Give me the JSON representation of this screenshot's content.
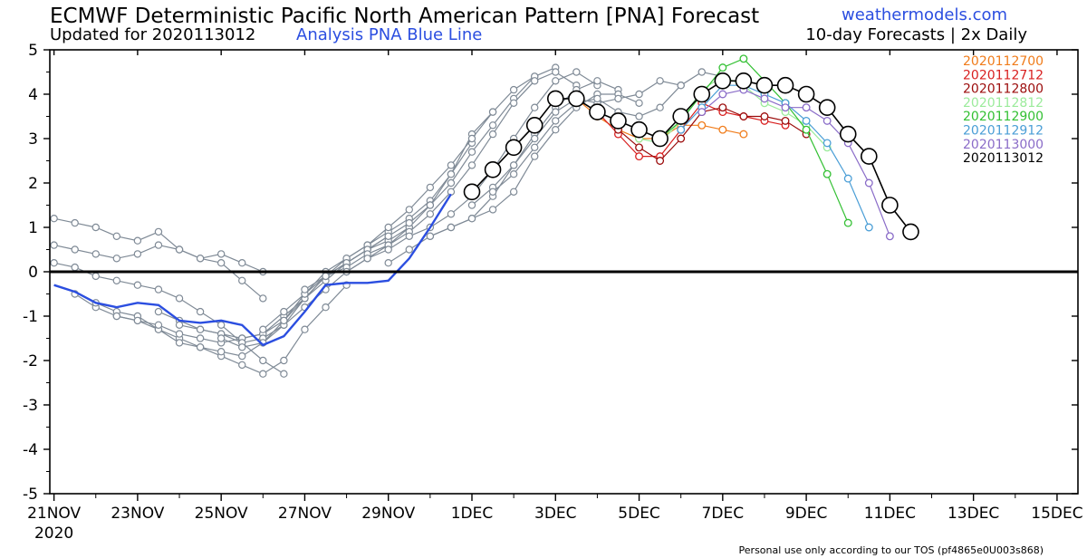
{
  "header": {
    "title": "ECMWF Deterministic Pacific North American Pattern [PNA] Forecast",
    "brand": "weathermodels.com",
    "updated": "Updated for 2020113012",
    "analysis_label": "Analysis PNA Blue Line",
    "forecast_info": "10-day Forecasts | 2x Daily"
  },
  "footer": {
    "tos": "Personal use only according to our TOS (pf4865e0U003s868)"
  },
  "colors": {
    "analysis": "#2b4ee0",
    "ensemble_grey": "#7f8a96",
    "zero_line": "#000000"
  },
  "chart_data": {
    "type": "line",
    "title": "ECMWF Deterministic Pacific North American Pattern [PNA] Forecast",
    "xlabel": "",
    "ylabel": "",
    "x_unit": "days since 21NOV 2020",
    "xlim": [
      -0.1,
      24.5
    ],
    "ylim": [
      -5,
      5
    ],
    "grid": false,
    "legend_position": "top-right",
    "x_tick_labels": [
      "21NOV",
      "23NOV",
      "25NOV",
      "27NOV",
      "29NOV",
      "1DEC",
      "3DEC",
      "5DEC",
      "7DEC",
      "9DEC",
      "11DEC",
      "13DEC",
      "15DEC"
    ],
    "x_tick_positions": [
      0,
      2,
      4,
      6,
      8,
      10,
      12,
      14,
      16,
      18,
      20,
      22,
      24
    ],
    "year_label": "2020",
    "y_ticks": [
      5,
      4,
      3,
      2,
      1,
      0,
      -1,
      -2,
      -3,
      -4,
      -5
    ],
    "analysis": {
      "name": "Analysis PNA",
      "x": [
        0,
        0.5,
        1,
        1.5,
        2,
        2.5,
        3,
        3.5,
        4,
        4.5,
        5,
        5.5,
        6,
        6.5,
        7,
        7.5,
        8,
        8.5,
        9,
        9.5
      ],
      "y": [
        -0.3,
        -0.45,
        -0.7,
        -0.8,
        -0.7,
        -0.75,
        -1.1,
        -1.15,
        -1.1,
        -1.2,
        -1.65,
        -1.45,
        -0.9,
        -0.3,
        -0.25,
        -0.25,
        -0.2,
        0.3,
        1.0,
        1.75
      ]
    },
    "past_forecasts": [
      {
        "x": [
          0,
          0.5,
          1,
          1.5,
          2,
          2.5,
          3,
          3.5,
          4,
          4.5,
          5
        ],
        "y": [
          1.2,
          1.1,
          1.0,
          0.8,
          0.7,
          0.9,
          0.5,
          0.3,
          0.2,
          -0.2,
          -0.6
        ]
      },
      {
        "x": [
          0,
          0.5,
          1,
          1.5,
          2,
          2.5,
          3,
          3.5,
          4,
          4.5,
          5
        ],
        "y": [
          0.6,
          0.5,
          0.4,
          0.3,
          0.4,
          0.6,
          0.5,
          0.3,
          0.4,
          0.2,
          0.0
        ]
      },
      {
        "x": [
          0,
          0.5,
          1,
          1.5,
          2,
          2.5,
          3,
          3.5,
          4,
          4.5,
          5,
          5.5
        ],
        "y": [
          0.2,
          0.1,
          -0.1,
          -0.2,
          -0.3,
          -0.4,
          -0.6,
          -0.9,
          -1.2,
          -1.6,
          -2.0,
          -2.3
        ]
      },
      {
        "x": [
          0.5,
          1,
          1.5,
          2,
          2.5,
          3,
          3.5,
          4,
          4.5,
          5,
          5.5,
          6,
          6.5,
          7
        ],
        "y": [
          -0.5,
          -0.8,
          -1.0,
          -1.1,
          -1.3,
          -1.5,
          -1.7,
          -1.9,
          -2.1,
          -2.3,
          -2.0,
          -1.3,
          -0.8,
          -0.3
        ]
      },
      {
        "x": [
          1,
          1.5,
          2,
          2.5,
          3,
          3.5,
          4,
          4.5,
          5,
          5.5,
          6,
          6.5,
          7,
          7.5,
          8
        ],
        "y": [
          -0.7,
          -0.9,
          -1.0,
          -1.3,
          -1.6,
          -1.7,
          -1.8,
          -1.9,
          -1.6,
          -1.2,
          -0.6,
          -0.2,
          0.2,
          0.5,
          0.8
        ]
      },
      {
        "x": [
          1.5,
          2,
          2.5,
          3,
          3.5,
          4,
          4.5,
          5,
          5.5,
          6,
          6.5,
          7,
          7.5,
          8,
          8.5
        ],
        "y": [
          -1.0,
          -1.1,
          -1.2,
          -1.4,
          -1.5,
          -1.6,
          -1.5,
          -1.4,
          -1.0,
          -0.6,
          -0.1,
          0.2,
          0.5,
          0.7,
          1.0
        ]
      },
      {
        "x": [
          2.5,
          3,
          3.5,
          4,
          4.5,
          5,
          5.5,
          6,
          6.5,
          7,
          7.5,
          8,
          8.5,
          9,
          9.5,
          10
        ],
        "y": [
          -0.9,
          -1.1,
          -1.3,
          -1.4,
          -1.5,
          -1.4,
          -1.1,
          -0.6,
          -0.1,
          0.3,
          0.6,
          0.9,
          1.2,
          1.6,
          2.2,
          2.9
        ]
      },
      {
        "x": [
          3,
          3.5,
          4,
          4.5,
          5,
          5.5,
          6,
          6.5,
          7,
          7.5,
          8,
          8.5,
          9,
          9.5,
          10,
          10.5
        ],
        "y": [
          -1.2,
          -1.3,
          -1.4,
          -1.6,
          -1.5,
          -1.2,
          -0.8,
          -0.4,
          0.0,
          0.3,
          0.6,
          1.0,
          1.5,
          2.2,
          3.1,
          3.6
        ]
      },
      {
        "x": [
          4,
          4.5,
          5,
          5.5,
          6,
          6.5,
          7,
          7.5,
          8,
          8.5,
          9,
          9.5,
          10,
          10.5,
          11,
          11.5
        ],
        "y": [
          -1.5,
          -1.7,
          -1.6,
          -1.1,
          -0.5,
          0.0,
          0.3,
          0.6,
          1.0,
          1.4,
          1.9,
          2.4,
          3.0,
          3.6,
          4.1,
          4.4
        ]
      },
      {
        "x": [
          5,
          5.5,
          6,
          6.5,
          7,
          7.5,
          8,
          8.5,
          9,
          9.5,
          10,
          10.5,
          11,
          11.5,
          12
        ],
        "y": [
          -1.3,
          -0.9,
          -0.5,
          -0.1,
          0.2,
          0.5,
          0.8,
          1.1,
          1.5,
          2.0,
          2.7,
          3.3,
          3.9,
          4.4,
          4.6
        ]
      },
      {
        "x": [
          6,
          6.5,
          7,
          7.5,
          8,
          8.5,
          9,
          9.5,
          10,
          10.5,
          11,
          11.5,
          12,
          12.5
        ],
        "y": [
          -0.4,
          -0.1,
          0.1,
          0.4,
          0.6,
          0.9,
          1.3,
          1.8,
          2.4,
          3.1,
          3.8,
          4.3,
          4.5,
          4.2
        ]
      },
      {
        "x": [
          7,
          7.5,
          8,
          8.5,
          9,
          9.5,
          10,
          10.5,
          11,
          11.5,
          12,
          12.5,
          13
        ],
        "y": [
          0.0,
          0.3,
          0.5,
          0.8,
          1.0,
          1.3,
          1.7,
          2.3,
          3.0,
          3.7,
          4.3,
          4.5,
          4.2
        ]
      },
      {
        "x": [
          8,
          8.5,
          9,
          9.5,
          10,
          10.5,
          11,
          11.5,
          12,
          12.5,
          13,
          13.5
        ],
        "y": [
          0.2,
          0.5,
          0.8,
          1.0,
          1.2,
          1.7,
          2.4,
          3.1,
          3.7,
          4.1,
          4.3,
          4.1
        ]
      },
      {
        "x": [
          9,
          9.5,
          10,
          10.5,
          11,
          11.5,
          12,
          12.5,
          13,
          13.5,
          14
        ],
        "y": [
          0.8,
          1.0,
          1.2,
          1.4,
          1.8,
          2.6,
          3.2,
          3.7,
          4.0,
          4.0,
          3.8
        ]
      },
      {
        "x": [
          10,
          10.5,
          11,
          11.5,
          12,
          12.5,
          13,
          13.5,
          14,
          14.5,
          15
        ],
        "y": [
          1.5,
          1.9,
          2.4,
          3.0,
          3.6,
          3.9,
          3.8,
          3.9,
          4.0,
          4.3,
          4.2
        ]
      },
      {
        "x": [
          10.5,
          11,
          11.5,
          12,
          12.5,
          13,
          13.5,
          14,
          14.5,
          15,
          15.5,
          16
        ],
        "y": [
          1.8,
          2.2,
          2.8,
          3.4,
          3.8,
          3.9,
          3.6,
          3.5,
          3.7,
          4.2,
          4.5,
          4.4
        ]
      }
    ],
    "series": [
      {
        "name": "2020112700",
        "color": "#f07c1b",
        "x": [
          12.5,
          13,
          13.5,
          14,
          14.5,
          15,
          15.5,
          16,
          16.5
        ],
        "y": [
          3.9,
          3.5,
          3.2,
          3.0,
          3.0,
          3.3,
          3.3,
          3.2,
          3.1
        ]
      },
      {
        "name": "2020112712",
        "color": "#d81f1f",
        "x": [
          13,
          13.5,
          14,
          14.5,
          15,
          15.5,
          16,
          16.5,
          17,
          17.5
        ],
        "y": [
          3.6,
          3.1,
          2.6,
          2.6,
          3.2,
          3.8,
          3.6,
          3.5,
          3.4,
          3.3
        ]
      },
      {
        "name": "2020112800",
        "color": "#9b0b0b",
        "x": [
          13.5,
          14,
          14.5,
          15,
          15.5,
          16,
          16.5,
          17,
          17.5,
          18
        ],
        "y": [
          3.2,
          2.8,
          2.5,
          3.0,
          3.6,
          3.7,
          3.5,
          3.5,
          3.4,
          3.1
        ]
      },
      {
        "name": "2020112812",
        "color": "#9beb9b",
        "x": [
          14,
          14.5,
          15,
          15.5,
          16,
          16.5,
          17,
          17.5,
          18,
          18.5
        ],
        "y": [
          3.0,
          2.9,
          3.4,
          4.1,
          4.4,
          4.2,
          3.8,
          3.6,
          3.3,
          2.8
        ]
      },
      {
        "name": "2020112900",
        "color": "#33c033",
        "x": [
          14.5,
          15,
          15.5,
          16,
          16.5,
          17,
          17.5,
          18,
          18.5,
          19
        ],
        "y": [
          3.0,
          3.4,
          4.0,
          4.6,
          4.8,
          4.3,
          3.8,
          3.2,
          2.2,
          1.1
        ]
      },
      {
        "name": "2020112912",
        "color": "#4a9ed6",
        "x": [
          15,
          15.5,
          16,
          16.5,
          17,
          17.5,
          18,
          18.5,
          19,
          19.5
        ],
        "y": [
          3.2,
          3.7,
          4.2,
          4.2,
          4.0,
          3.8,
          3.4,
          2.9,
          2.1,
          1.0
        ]
      },
      {
        "name": "2020113000",
        "color": "#8a6cc8",
        "x": [
          15.5,
          16,
          16.5,
          17,
          17.5,
          18,
          18.5,
          19,
          19.5,
          20
        ],
        "y": [
          3.6,
          4.0,
          4.1,
          3.9,
          3.7,
          3.7,
          3.4,
          2.9,
          2.0,
          0.8
        ]
      },
      {
        "name": "2020113012",
        "color": "#000000",
        "x": [
          10,
          10.5,
          11,
          11.5,
          12,
          12.5,
          13,
          13.5,
          14,
          14.5,
          15,
          15.5,
          16,
          16.5,
          17,
          17.5,
          18,
          18.5,
          19,
          19.5,
          20,
          20.5
        ],
        "y": [
          1.8,
          2.3,
          2.8,
          3.3,
          3.9,
          3.9,
          3.6,
          3.4,
          3.2,
          3.0,
          3.5,
          4.0,
          4.3,
          4.3,
          4.2,
          4.2,
          4.0,
          3.7,
          3.1,
          2.6,
          1.5,
          0.9
        ]
      }
    ]
  }
}
